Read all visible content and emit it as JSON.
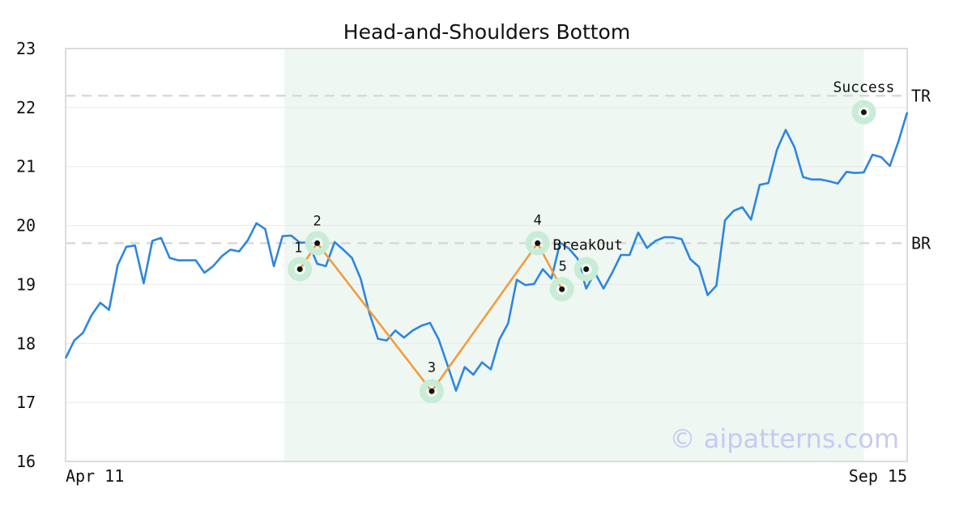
{
  "chart_data": {
    "type": "line",
    "title": "Head-and-Shoulders Bottom",
    "xlabel": "",
    "ylabel": "",
    "ylim": [
      16,
      23
    ],
    "yticks": [
      16,
      17,
      18,
      19,
      20,
      21,
      22,
      23
    ],
    "x_labels": [
      "Apr 11",
      "Sep 15"
    ],
    "x_count": 98,
    "grid": true,
    "colors": {
      "price": "#2e86de",
      "pattern": "#f39c3d",
      "marker": "#c8ecd6",
      "shade": "#eef7f2",
      "level": "#d9d9d9"
    },
    "shaded_range": [
      25.2,
      92.0
    ],
    "series": [
      {
        "values": [
          17.75,
          18.05,
          18.18,
          18.48,
          18.69,
          18.57,
          19.33,
          19.64,
          19.66,
          19.02,
          19.74,
          19.79,
          19.45,
          19.41,
          19.41,
          19.41,
          19.2,
          19.31,
          19.48,
          19.59,
          19.56,
          19.75,
          20.04,
          19.94,
          19.31,
          19.82,
          19.83,
          19.71,
          19.71,
          19.35,
          19.31,
          19.72,
          19.59,
          19.45,
          19.1,
          18.52,
          18.08,
          18.05,
          18.22,
          18.1,
          18.22,
          18.3,
          18.35,
          18.07,
          17.64,
          17.2,
          17.6,
          17.47,
          17.68,
          17.56,
          18.07,
          18.34,
          19.08,
          18.99,
          19.01,
          19.26,
          19.1,
          19.71,
          19.61,
          19.44,
          18.93,
          19.2,
          18.93,
          19.2,
          19.5,
          19.5,
          19.88,
          19.62,
          19.74,
          19.8,
          19.8,
          19.77,
          19.43,
          19.3,
          18.82,
          18.98,
          20.09,
          20.25,
          20.31,
          20.1,
          20.69,
          20.72,
          21.29,
          21.62,
          21.33,
          20.82,
          20.78,
          20.78,
          20.75,
          20.71,
          20.91,
          20.89,
          20.9,
          21.2,
          21.16,
          21.01,
          21.43,
          21.92
        ]
      }
    ],
    "pattern_points": [
      {
        "label": "1",
        "x": 27.0,
        "y": 19.26
      },
      {
        "label": "2",
        "x": 29.0,
        "y": 19.7
      },
      {
        "label": "3",
        "x": 42.2,
        "y": 17.19
      },
      {
        "label": "4",
        "x": 54.4,
        "y": 19.7
      },
      {
        "label": "5",
        "x": 57.2,
        "y": 18.92
      }
    ],
    "breakout_point": {
      "label": "BreakOut",
      "x": 60.0,
      "y": 19.26
    },
    "success_point": {
      "label": "Success",
      "x": 92.0,
      "y": 21.92
    },
    "levels": [
      {
        "label": "TR",
        "y": 22.2
      },
      {
        "label": "BR",
        "y": 19.7
      }
    ],
    "watermark": "© aipatterns.com"
  }
}
